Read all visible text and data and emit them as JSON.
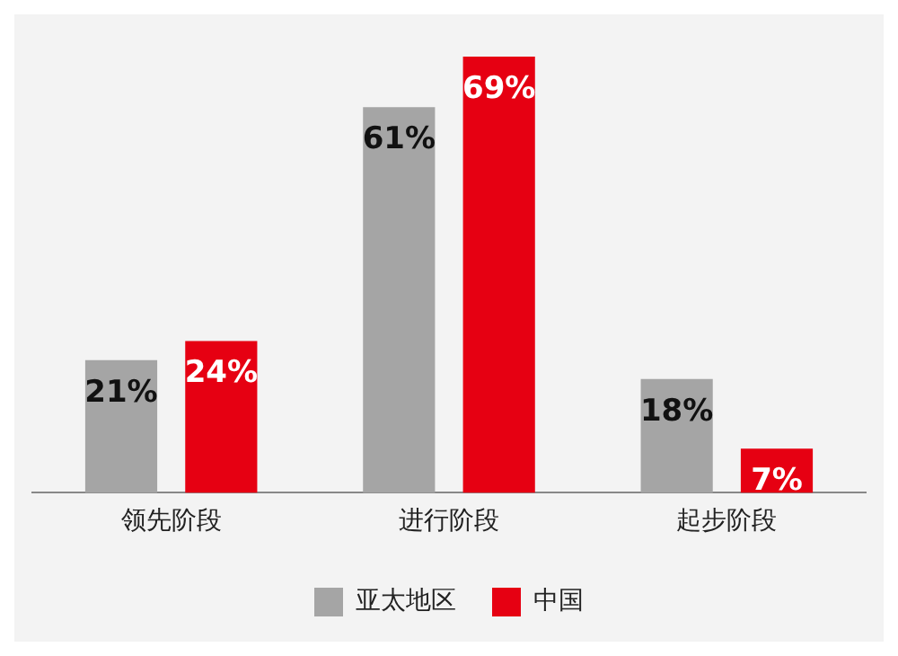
{
  "chart_data": {
    "type": "bar",
    "categories": [
      "领先阶段",
      "进行阶段",
      "起步阶段"
    ],
    "series": [
      {
        "name": "亚太地区",
        "color": "#a5a5a5",
        "values": [
          21,
          61,
          18
        ],
        "value_labels": [
          "21%",
          "61%",
          "18%"
        ]
      },
      {
        "name": "中国",
        "color": "#e60012",
        "values": [
          24,
          69,
          7
        ],
        "value_labels": [
          "24%",
          "69%",
          "7%"
        ]
      }
    ],
    "legend": "bottom"
  }
}
